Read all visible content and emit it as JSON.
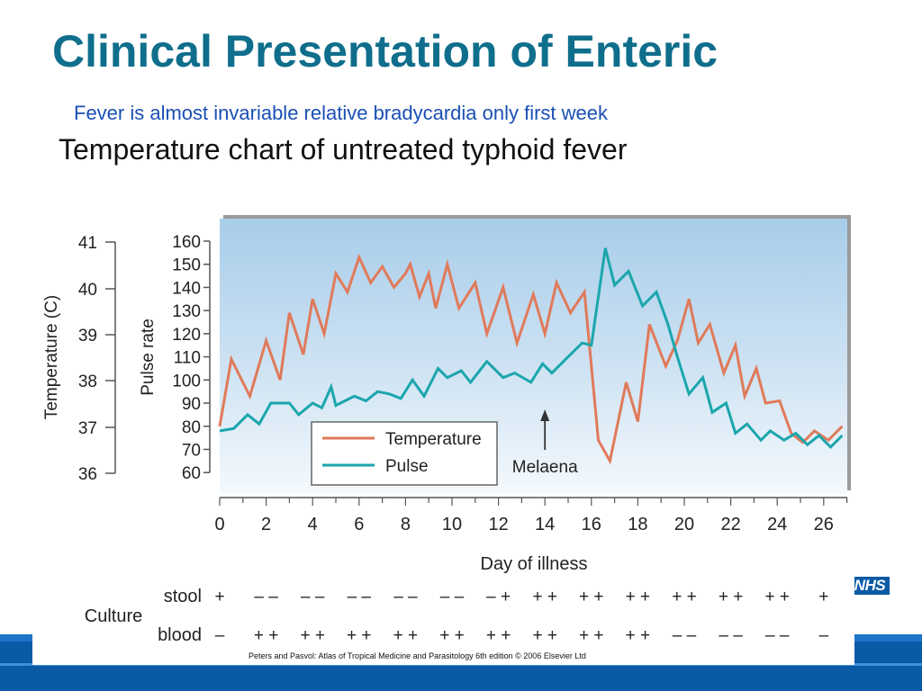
{
  "slide": {
    "title": "Clinical Presentation of Enteric",
    "subtitle": "Fever is almost invariable relative bradycardia only first week",
    "figure_heading": "Temperature chart of untreated typhoid fever",
    "citation": "Peters and Pasvol: Atlas of Tropical Medicine and Parasitology 6th edition © 2006 Elsevier Ltd",
    "logo_text": "NHS"
  },
  "colors": {
    "title": "#0f6e8c",
    "subtitle": "#1a4fb4",
    "temperature": "#e07a5a",
    "pulse": "#1aa6ac",
    "footer": "#0a5aa6"
  },
  "chart_data": {
    "type": "line",
    "title": "Temperature chart of untreated typhoid fever",
    "xlabel": "Day of illness",
    "ylabel_left": "Temperature (C)",
    "ylabel_inner": "Pulse rate",
    "xlim": [
      0,
      27
    ],
    "ylim_pulse": [
      50,
      165
    ],
    "temperature_ticks": [
      "41",
      "40",
      "39",
      "38",
      "37",
      "36"
    ],
    "temperature_tick_values": [
      41,
      40,
      39,
      38,
      37,
      36
    ],
    "pulse_ticks": [
      "160",
      "150",
      "140",
      "130",
      "120",
      "110",
      "100",
      "90",
      "80",
      "70",
      "60"
    ],
    "pulse_tick_values": [
      160,
      150,
      140,
      130,
      120,
      110,
      100,
      90,
      80,
      70,
      60
    ],
    "x_ticks": [
      "0",
      "2",
      "4",
      "6",
      "8",
      "10",
      "12",
      "14",
      "16",
      "18",
      "20",
      "22",
      "24",
      "26"
    ],
    "x_tick_values": [
      0,
      2,
      4,
      6,
      8,
      10,
      12,
      14,
      16,
      18,
      20,
      22,
      24,
      26
    ],
    "grid": false,
    "legend_position": "bottom-left",
    "series": [
      {
        "name": "Temperature",
        "x": [
          0,
          0.5,
          1.3,
          2,
          2.6,
          3,
          3.6,
          4,
          4.5,
          5,
          5.5,
          6,
          6.5,
          7,
          7.5,
          8,
          8.2,
          8.6,
          9,
          9.3,
          9.8,
          10.3,
          11,
          11.5,
          12.2,
          12.8,
          13.5,
          14,
          14.5,
          15.1,
          15.7,
          16.3,
          16.8,
          17.5,
          18,
          18.5,
          19.2,
          19.7,
          20.2,
          20.6,
          21.1,
          21.7,
          22.2,
          22.6,
          23.1,
          23.5,
          24.1,
          24.6,
          25.1,
          25.6,
          26.2,
          26.8
        ],
        "values": [
          80,
          109,
          93,
          117,
          100,
          129,
          111,
          135,
          120,
          146,
          138,
          153,
          142,
          149,
          140,
          146,
          150,
          136,
          146,
          131,
          150,
          131,
          142,
          120,
          140,
          116,
          137,
          120,
          142,
          129,
          138,
          74,
          65,
          99,
          82,
          124,
          106,
          117,
          135,
          116,
          124,
          103,
          115,
          93,
          105,
          90,
          91,
          77,
          73,
          78,
          74,
          80
        ]
      },
      {
        "name": "Pulse",
        "x": [
          0,
          0.6,
          1.2,
          1.7,
          2.2,
          3,
          3.4,
          4,
          4.4,
          4.8,
          5,
          5.8,
          6.3,
          6.8,
          7.3,
          7.8,
          8.3,
          8.8,
          9.4,
          9.8,
          10.4,
          10.8,
          11.5,
          12.2,
          12.7,
          13.4,
          13.9,
          14.3,
          15,
          15.6,
          16,
          16.6,
          17,
          17.6,
          18.2,
          18.8,
          19.3,
          19.7,
          20.2,
          20.8,
          21.2,
          21.8,
          22.2,
          22.7,
          23.3,
          23.7,
          24.3,
          24.8,
          25.3,
          25.8,
          26.3,
          26.8
        ],
        "values": [
          78,
          79,
          85,
          81,
          90,
          90,
          85,
          90,
          88,
          97,
          89,
          93,
          91,
          95,
          94,
          92,
          100,
          93,
          105,
          101,
          104,
          99,
          108,
          101,
          103,
          99,
          107,
          103,
          110,
          116,
          115,
          157,
          141,
          147,
          132,
          138,
          124,
          110,
          94,
          101,
          86,
          90,
          77,
          81,
          74,
          78,
          74,
          77,
          72,
          76,
          71,
          76
        ]
      }
    ],
    "annotations": [
      {
        "text": "Melaena",
        "x": 14,
        "arrow": true
      }
    ],
    "culture_table": {
      "label": "Culture",
      "rows": [
        {
          "label": "stool",
          "cells": [
            "+",
            "– –",
            "– –",
            "– –",
            "– –",
            "– –",
            "– +",
            "+ +",
            "+ +",
            "+ +",
            "+ +",
            "+ +",
            "+ +",
            "+"
          ]
        },
        {
          "label": "blood",
          "cells": [
            "–",
            "+ +",
            "+ +",
            "+ +",
            "+ +",
            "+ +",
            "+ +",
            "+ +",
            "+ +",
            "+ +",
            "– –",
            "– –",
            "– –",
            "–"
          ]
        }
      ]
    }
  }
}
